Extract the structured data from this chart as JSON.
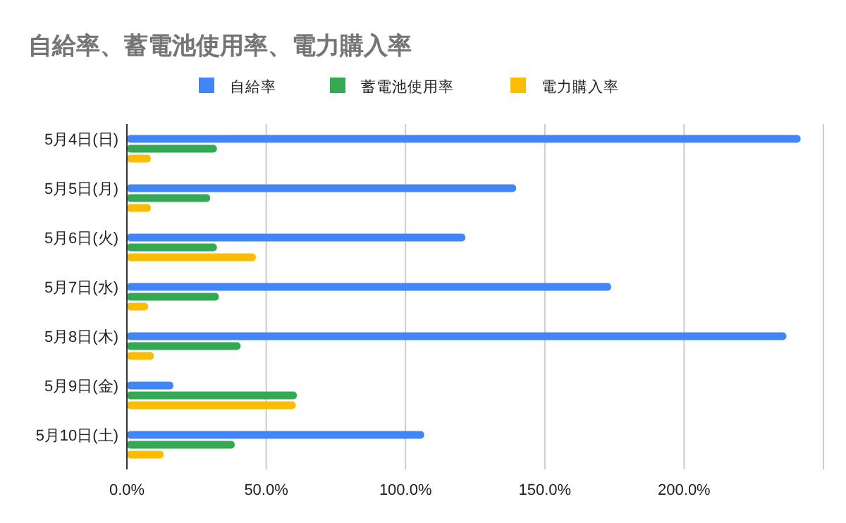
{
  "chart_data": {
    "type": "bar",
    "orientation": "horizontal",
    "title": "自給率、蓄電池使用率、電力購入率",
    "categories": [
      "5月4日(日)",
      "5月5日(月)",
      "5月6日(火)",
      "5月7日(水)",
      "5月8日(木)",
      "5月9日(金)",
      "5月10日(土)"
    ],
    "series": [
      {
        "name": "自給率",
        "color": "#4285f4",
        "values": [
          241.8,
          139.7,
          121.5,
          173.8,
          236.7,
          16.7,
          106.7
        ]
      },
      {
        "name": "蓄電池使用率",
        "color": "#34a853",
        "values": [
          32.3,
          29.9,
          32.3,
          33.0,
          40.8,
          61.0,
          38.7
        ]
      },
      {
        "name": "電力購入率",
        "color": "#fbbc04",
        "values": [
          8.6,
          8.6,
          46.3,
          7.6,
          9.7,
          60.6,
          13.2
        ]
      }
    ],
    "xlim": [
      0,
      250
    ],
    "xticks": [
      {
        "value": 0,
        "label": "0.0%"
      },
      {
        "value": 50,
        "label": "50.0%"
      },
      {
        "value": 100,
        "label": "100.0%"
      },
      {
        "value": 150,
        "label": "150.0%"
      },
      {
        "value": 200,
        "label": "200.0%"
      },
      {
        "value": 250,
        "label": null
      }
    ],
    "grid": "x",
    "legend": "top"
  }
}
